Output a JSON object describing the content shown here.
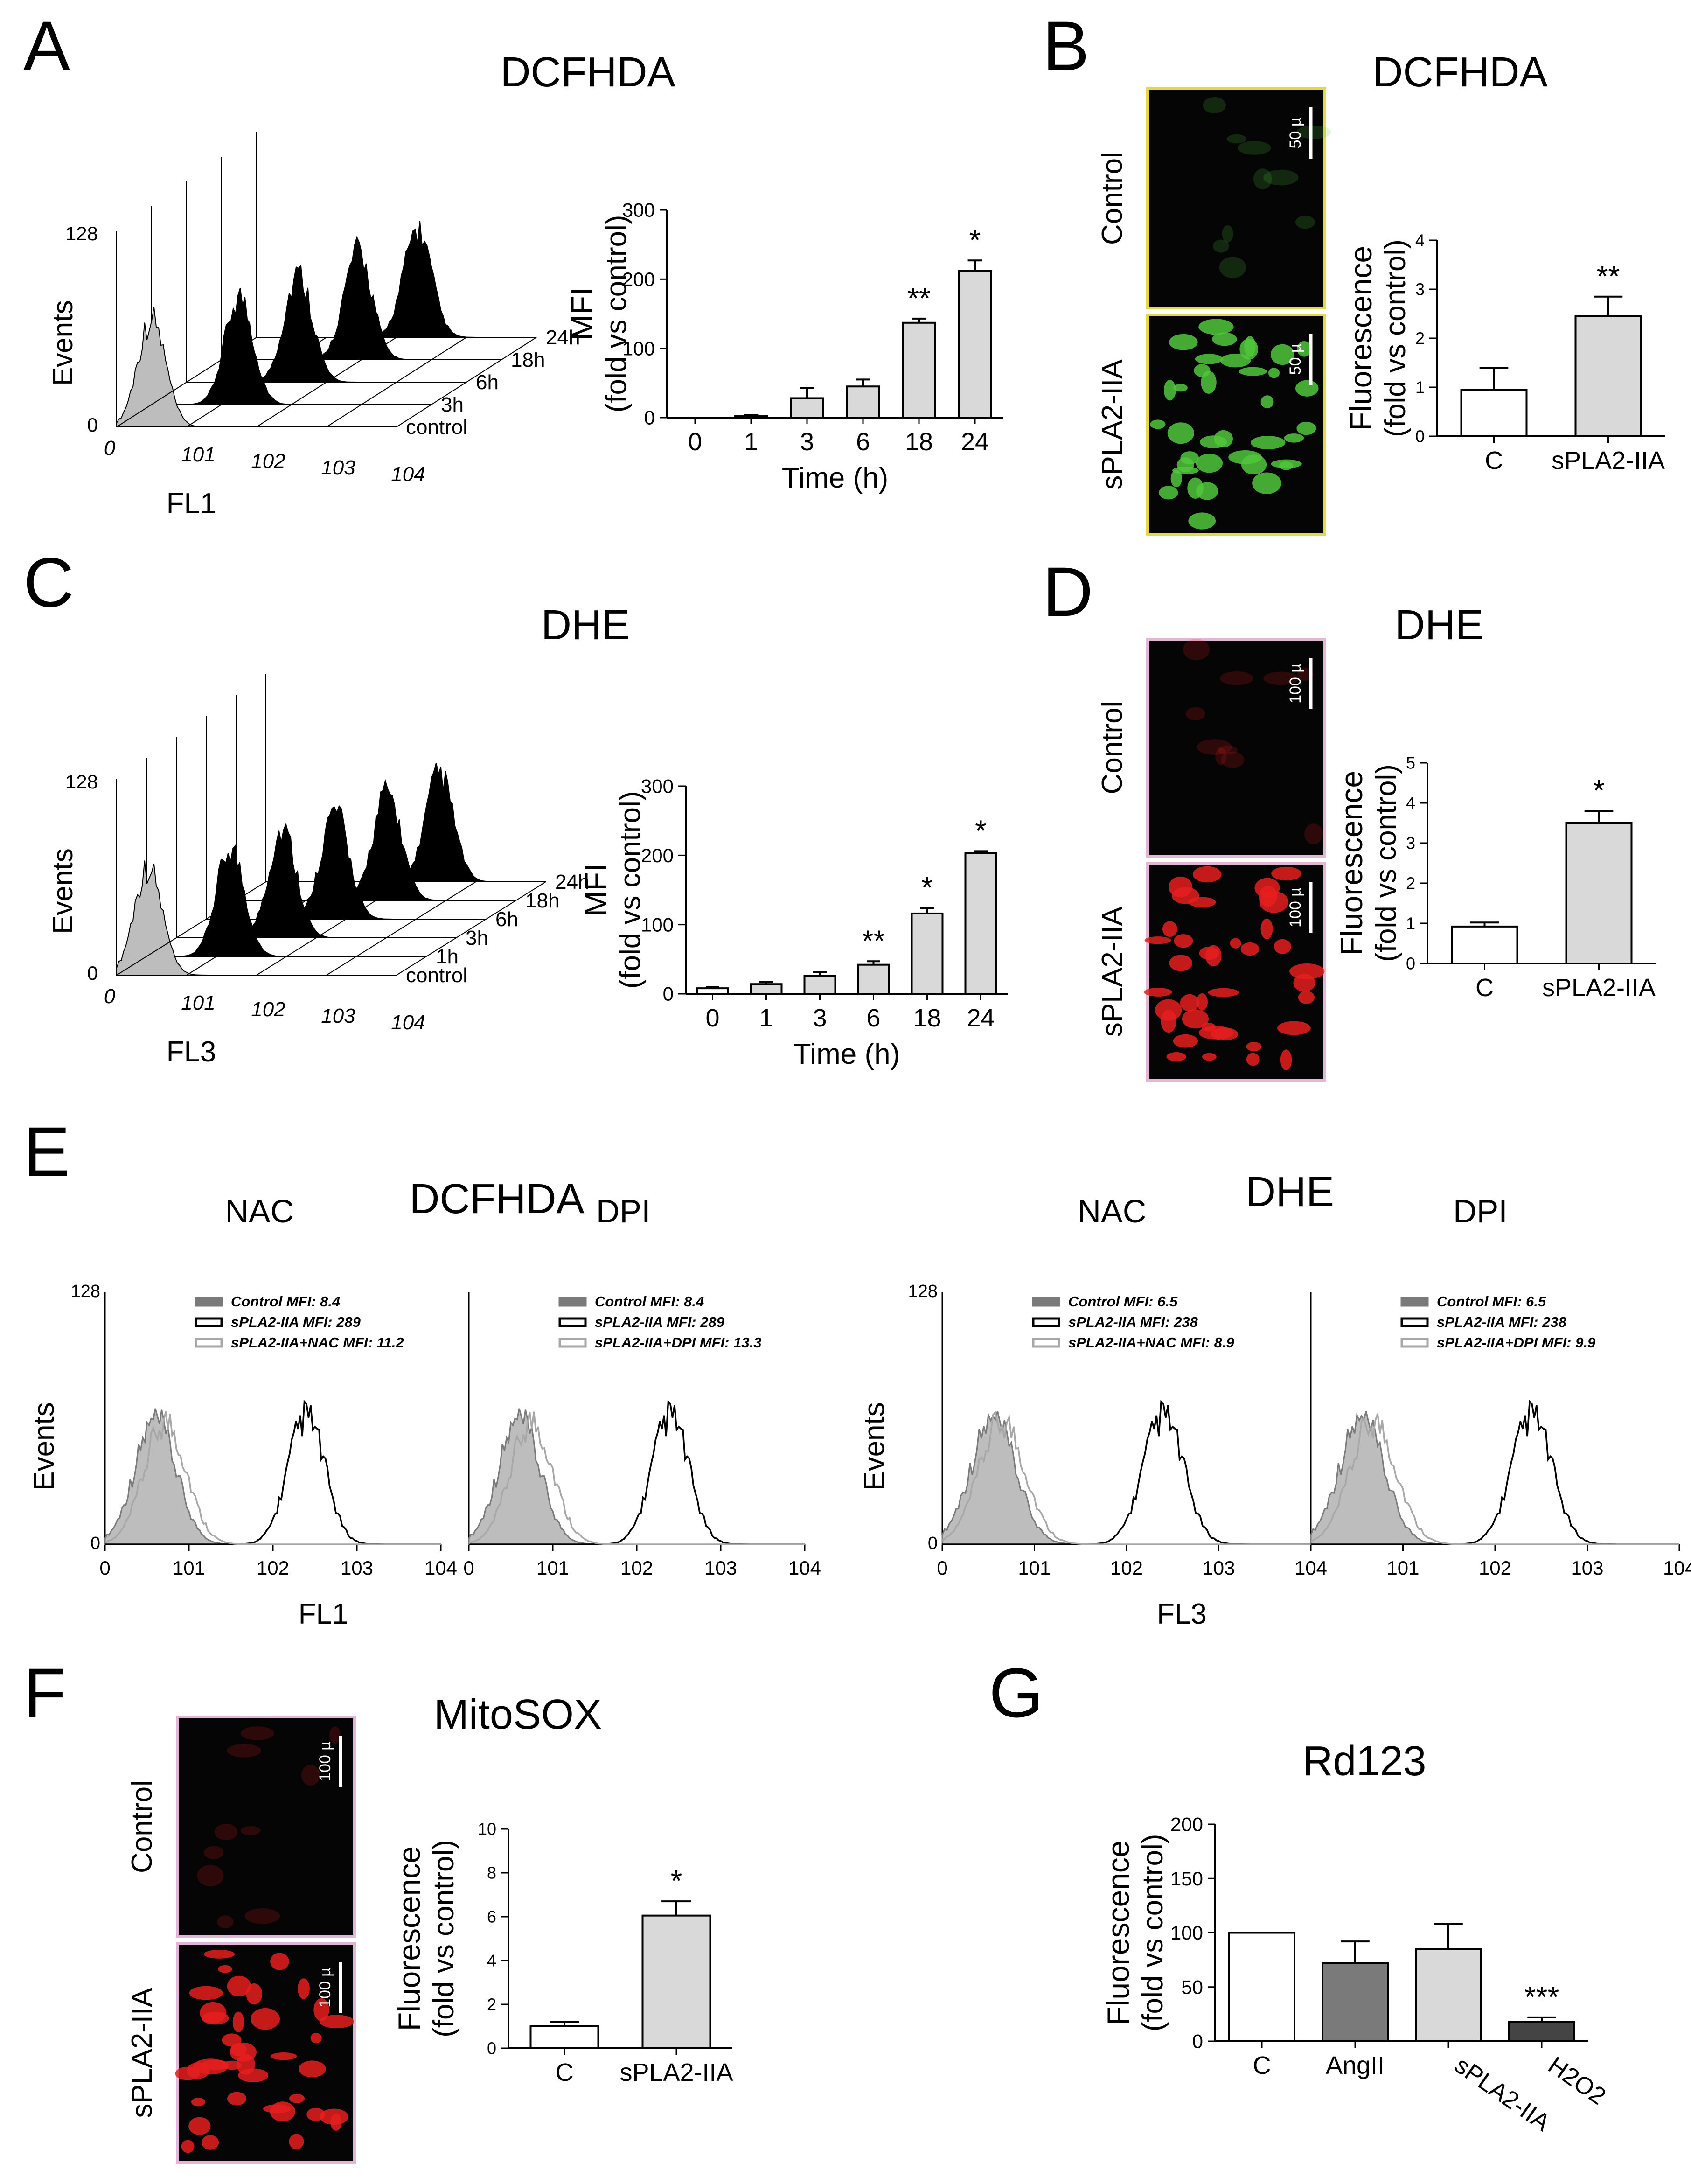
{
  "panels": {
    "A": {
      "label": "A",
      "title": "DCFHDA"
    },
    "B": {
      "label": "B",
      "title": "DCFHDA"
    },
    "C": {
      "label": "C",
      "title": "DHE"
    },
    "D": {
      "label": "D",
      "title": "DHE"
    },
    "E": {
      "label": "E",
      "title_left": "DCFHDA",
      "title_right": "DHE"
    },
    "F": {
      "label": "F",
      "title": "MitoSOX"
    },
    "G": {
      "label": "G",
      "title": "Rd123"
    }
  },
  "hist3d": {
    "A": {
      "events_label": "Events",
      "channel_label": "FL1",
      "ymax_label": "128",
      "zero_label": "0",
      "x_ticks": [
        "0",
        "101",
        "102",
        "103",
        "104"
      ],
      "depth_labels": [
        "control",
        "3h",
        "6h",
        "18h",
        "24h"
      ]
    },
    "C": {
      "events_label": "Events",
      "channel_label": "FL3",
      "ymax_label": "128",
      "zero_label": "0",
      "x_ticks": [
        "0",
        "101",
        "102",
        "103",
        "104"
      ],
      "depth_labels": [
        "control",
        "1h",
        "3h",
        "6h",
        "18h",
        "24h"
      ]
    }
  },
  "micro": {
    "B": {
      "top_label": "Control",
      "bottom_label": "sPLA2-IIA",
      "scale_label": "50 µ"
    },
    "D": {
      "top_label": "Control",
      "bottom_label": "sPLA2-IIA",
      "scale_label": "100 µ"
    },
    "F": {
      "top_label": "Control",
      "bottom_label": "sPLA2-IIA",
      "scale_label": "100 µ"
    }
  },
  "colors": {
    "gray_bar": "#d9d9d9",
    "dark_bar": "#444444",
    "mid_bar": "#7a7a7a",
    "green_border": "#e6d84a",
    "pink_border": "#e3b6d6"
  },
  "chart_data": [
    {
      "id": "A_bar",
      "type": "bar",
      "title": "DCFHDA",
      "xlabel": "Time (h)",
      "ylabel": "MFI",
      "ylabel2": "(fold vs control)",
      "categories": [
        "0",
        "1",
        "3",
        "6",
        "18",
        "24"
      ],
      "values": [
        0,
        2,
        28,
        45,
        137,
        212
      ],
      "errors": [
        0,
        2,
        15,
        10,
        6,
        15
      ],
      "significance": [
        "",
        "",
        "",
        "",
        "**",
        "*"
      ],
      "ylim": [
        0,
        300
      ],
      "yticks": [
        "0",
        "100",
        "200",
        "300"
      ]
    },
    {
      "id": "B_bar",
      "type": "bar",
      "xlabel": "",
      "ylabel": "Fluorescence",
      "ylabel2": "(fold vs control)",
      "categories": [
        "C",
        "sPLA2-IIA"
      ],
      "values": [
        0.95,
        2.45
      ],
      "errors": [
        0.45,
        0.4
      ],
      "significance": [
        "",
        "**"
      ],
      "ylim": [
        0,
        4
      ],
      "yticks": [
        "0",
        "1",
        "2",
        "3",
        "4"
      ]
    },
    {
      "id": "C_bar",
      "type": "bar",
      "title": "DHE",
      "xlabel": "Time (h)",
      "ylabel": "MFI",
      "ylabel2": "(fold vs control)",
      "categories": [
        "0",
        "1",
        "3",
        "6",
        "18",
        "24"
      ],
      "values": [
        8,
        14,
        26,
        42,
        116,
        203
      ],
      "errors": [
        2,
        3,
        5,
        5,
        8,
        3
      ],
      "significance": [
        "",
        "",
        "",
        "**",
        "*",
        "*"
      ],
      "ylim": [
        0,
        300
      ],
      "yticks": [
        "0",
        "100",
        "200",
        "300"
      ]
    },
    {
      "id": "D_bar",
      "type": "bar",
      "ylabel": "Fluorescence",
      "ylabel2": "(fold vs control)",
      "categories": [
        "C",
        "sPLA2-IIA"
      ],
      "values": [
        0.92,
        3.5
      ],
      "errors": [
        0.1,
        0.3
      ],
      "significance": [
        "",
        "*"
      ],
      "ylim": [
        0,
        5
      ],
      "yticks": [
        "0",
        "1",
        "2",
        "3",
        "4",
        "5"
      ]
    },
    {
      "id": "E1",
      "type": "histogram",
      "subtitle": "NAC",
      "xlabel": "FL1",
      "ylabel": "Events",
      "ymax_label": "128",
      "x_ticks": [
        "0",
        "101",
        "102",
        "103",
        "104"
      ],
      "legend": [
        {
          "name": "Control MFI: 8.4",
          "peak": 0.6,
          "color": "#7a7a7a",
          "fill": true
        },
        {
          "name": "sPLA2-IIA MFI: 289",
          "peak": 2.4,
          "color": "#000000",
          "fill": false
        },
        {
          "name": "sPLA2-IIA+NAC MFI: 11.2",
          "peak": 0.72,
          "color": "#a8a8a8",
          "fill": false
        }
      ]
    },
    {
      "id": "E2",
      "type": "histogram",
      "subtitle": "DPI",
      "xlabel": "",
      "ylabel": "",
      "ymax_label": "",
      "x_ticks": [
        "0",
        "101",
        "102",
        "103",
        "104"
      ],
      "legend": [
        {
          "name": "Control MFI: 8.4",
          "peak": 0.6,
          "color": "#7a7a7a",
          "fill": true
        },
        {
          "name": "sPLA2-IIA MFI: 289",
          "peak": 2.4,
          "color": "#000000",
          "fill": false
        },
        {
          "name": "sPLA2-IIA+DPI MFI:  13.3",
          "peak": 0.75,
          "color": "#a8a8a8",
          "fill": false
        }
      ]
    },
    {
      "id": "E3",
      "type": "histogram",
      "subtitle": "NAC",
      "xlabel": "FL3",
      "ylabel": "Events",
      "ymax_label": "128",
      "x_ticks": [
        "0",
        "101",
        "102",
        "103",
        "104"
      ],
      "legend": [
        {
          "name": "Control MFI: 6.5",
          "peak": 0.55,
          "color": "#7a7a7a",
          "fill": true
        },
        {
          "name": "sPLA2-IIA MFI: 238",
          "peak": 2.4,
          "color": "#000000",
          "fill": false
        },
        {
          "name": "sPLA2-IIA+NAC MFI: 8.9",
          "peak": 0.65,
          "color": "#a8a8a8",
          "fill": false
        }
      ]
    },
    {
      "id": "E4",
      "type": "histogram",
      "subtitle": "DPI",
      "xlabel": "",
      "ylabel": "",
      "ymax_label": "",
      "x_ticks": [
        "0",
        "101",
        "102",
        "103",
        "104"
      ],
      "legend": [
        {
          "name": "Control MFI: 6.5",
          "peak": 0.55,
          "color": "#7a7a7a",
          "fill": true
        },
        {
          "name": "sPLA2-IIA MFI: 238",
          "peak": 2.4,
          "color": "#000000",
          "fill": false
        },
        {
          "name": "sPLA2-IIA+DPI MFI: 9.9",
          "peak": 0.68,
          "color": "#a8a8a8",
          "fill": false
        }
      ]
    },
    {
      "id": "F_bar",
      "type": "bar",
      "ylabel": "Fluorescence",
      "ylabel2": "(fold vs control)",
      "categories": [
        "C",
        "sPLA2-IIA"
      ],
      "values": [
        1.0,
        6.05
      ],
      "errors": [
        0.2,
        0.65
      ],
      "significance": [
        "",
        "*"
      ],
      "ylim": [
        0,
        10
      ],
      "yticks": [
        "0",
        "2",
        "4",
        "6",
        "8",
        "10"
      ]
    },
    {
      "id": "G_bar",
      "type": "bar",
      "title": "Rd123",
      "ylabel": "Fluorescence",
      "ylabel2": "(fold vs control)",
      "categories": [
        "C",
        "AngII",
        "sPLA2-IIA",
        "H2O2"
      ],
      "values": [
        100,
        72,
        85,
        18
      ],
      "errors": [
        0,
        20,
        23,
        4
      ],
      "significance": [
        "",
        "",
        "",
        "***"
      ],
      "ylim": [
        0,
        200
      ],
      "yticks": [
        "0",
        "50",
        "100",
        "150",
        "200"
      ]
    }
  ]
}
